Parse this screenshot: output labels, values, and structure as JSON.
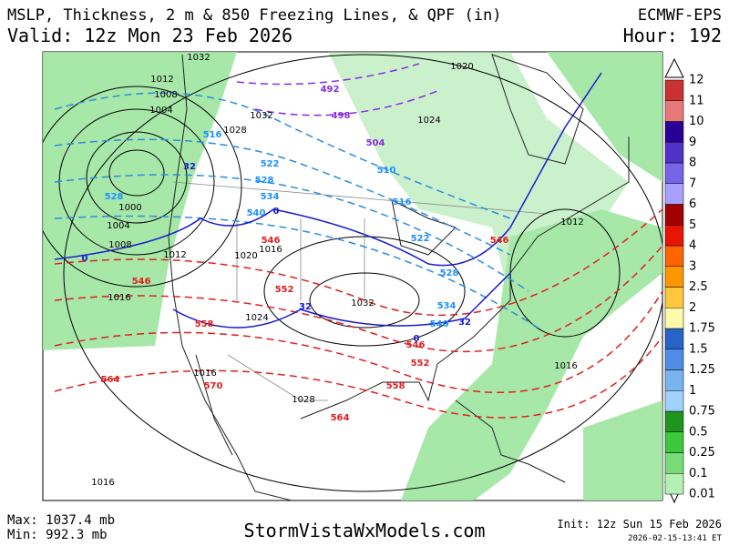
{
  "header": {
    "title": "MSLP, Thickness, 2 m & 850 Freezing Lines, & QPF (in)",
    "model": "ECMWF-EPS",
    "valid": "Valid: 12z Mon 23 Feb 2026",
    "hour": "Hour: 192"
  },
  "map": {
    "isobar_labels": [
      "1032",
      "1012",
      "1008",
      "1004",
      "1028",
      "1032",
      "1024",
      "1020",
      "1000",
      "1004",
      "1008",
      "1012",
      "1020",
      "1016",
      "1016",
      "1024",
      "1032",
      "1012",
      "1016",
      "1016",
      "1028",
      "1016"
    ],
    "thickness_blue_labels": [
      "516",
      "522",
      "528",
      "534",
      "540",
      "510",
      "516",
      "522",
      "528",
      "534",
      "540",
      "528"
    ],
    "thickness_purple_labels": [
      "492",
      "498",
      "504"
    ],
    "thickness_red_labels": [
      "546",
      "546",
      "552",
      "558",
      "564",
      "570",
      "546",
      "552",
      "558",
      "564",
      "546"
    ],
    "freezing_labels": [
      "0",
      "0",
      "32",
      "32",
      "0",
      "32"
    ]
  },
  "legend": {
    "levels": [
      0.01,
      0.1,
      0.25,
      0.5,
      0.75,
      1,
      1.25,
      1.5,
      1.75,
      2,
      2.5,
      3,
      4,
      5,
      6,
      7,
      8,
      9,
      10,
      11,
      12
    ],
    "colors": [
      "#b4f0b4",
      "#78dc78",
      "#3cc83c",
      "#1e961e",
      "#a0d2ff",
      "#78b4f0",
      "#508ce6",
      "#2864c8",
      "#fffaaa",
      "#ffc83c",
      "#ff9600",
      "#ff6400",
      "#e61400",
      "#a00000",
      "#aaa0ff",
      "#7864e6",
      "#5032c8",
      "#280096",
      "#e67878",
      "#c83232"
    ]
  },
  "footer": {
    "max": "Max: 1037.4 mb",
    "min": "Min: 992.3 mb",
    "site": "StormVistaWxModels.com",
    "init": "Init: 12z Sun 15 Feb 2026",
    "stamp": "2026-02-15-13:41 ET"
  }
}
